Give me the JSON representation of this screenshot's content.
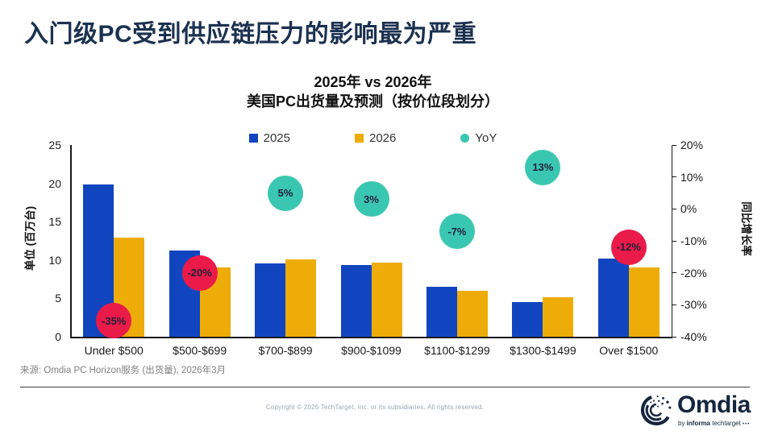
{
  "slide": {
    "title": "入门级PC受到供应链压力的影响最为严重",
    "source": "来源: Omdia PC Horizon服务 (出货量), 2026年3月",
    "copyright": "Copyright © 2026 TechTarget, Inc. or its subsidiaries. All rights reserved.",
    "logo": {
      "wordmark": "Omdia",
      "tagline_by": "by ",
      "tagline_brand": "informa",
      "tagline_suffix": " techtarget ",
      "tagline_dots": "•••"
    },
    "colors": {
      "title": "#1B3150",
      "bar_2025": "#1145BF",
      "bar_2026": "#EDAC08",
      "yoy_positive": "#3AC7B1",
      "yoy_negative": "#EA1A49",
      "axis": "#1a1a1a",
      "logo_navy": "#15263E"
    }
  },
  "chart_data": {
    "type": "bar",
    "title": "2025年 vs 2026年",
    "subtitle": "美国PC出货量及预测（按价位段划分）",
    "categories": [
      "Under $500",
      "$500-$699",
      "$700-$899",
      "$900-$1099",
      "$1100-$1299",
      "$1300-$1499",
      "Over $1500"
    ],
    "series": [
      {
        "name": "2025",
        "color": "#1145BF",
        "values": [
          19.9,
          11.2,
          9.6,
          9.4,
          6.5,
          4.5,
          10.2
        ]
      },
      {
        "name": "2026",
        "color": "#EDAC08",
        "values": [
          12.9,
          9.0,
          10.1,
          9.7,
          6.0,
          5.1,
          9.0
        ]
      }
    ],
    "yoy_series": {
      "name": "YoY",
      "values_pct": [
        -35,
        -20,
        5,
        3,
        -7,
        13,
        -12
      ],
      "labels": [
        "-35%",
        "-20%",
        "5%",
        "3%",
        "-7%",
        "13%",
        "-12%"
      ],
      "bubble_colors": [
        "#EA1A49",
        "#EA1A49",
        "#3AC7B1",
        "#3AC7B1",
        "#3AC7B1",
        "#3AC7B1",
        "#EA1A49"
      ]
    },
    "legend": [
      {
        "label": "2025",
        "color": "#1145BF",
        "shape": "square"
      },
      {
        "label": "2026",
        "color": "#EDAC08",
        "shape": "square"
      },
      {
        "label": "YoY",
        "color": "#3AC7B1",
        "shape": "circle"
      }
    ],
    "left_axis": {
      "label": "单位 (百万台)",
      "ticks": [
        0,
        5,
        10,
        15,
        20,
        25
      ],
      "min": 0,
      "max": 25
    },
    "right_axis": {
      "label": "同比增长率",
      "ticks_pct": [
        20,
        10,
        0,
        -10,
        -20,
        -30,
        -40
      ],
      "min": -40,
      "max": 20
    },
    "grid": false,
    "legend_position": "top"
  }
}
